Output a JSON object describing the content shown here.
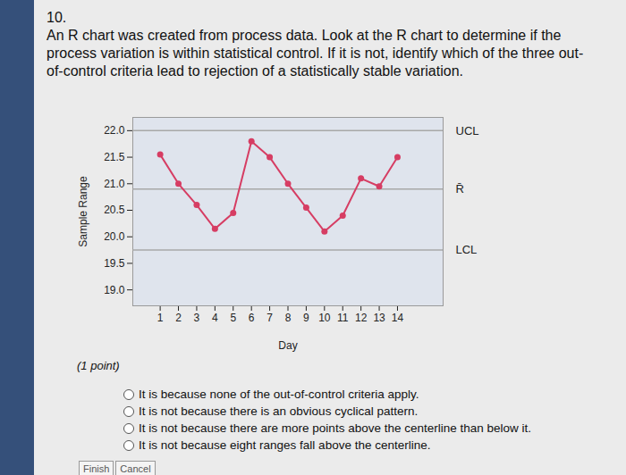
{
  "question": {
    "number": "10.",
    "text": "An R chart was created from process data. Look at the R chart to determine if the process variation is within statistical control. If it is not, identify which of the three out-of-control criteria lead to rejection of a statistically stable variation.",
    "points": "(1 point)",
    "options": [
      "It is because none of the out-of-control criteria apply.",
      "It is not because there is an obvious cyclical pattern.",
      "It is not because there are more points above the centerline than below it.",
      "It is not because eight ranges fall above the centerline."
    ],
    "buttons": [
      "Finish",
      "Cancel"
    ]
  },
  "chart_data": {
    "type": "line",
    "x_label": "Day",
    "y_label": "Sample Range",
    "x": [
      1,
      2,
      3,
      4,
      5,
      6,
      7,
      8,
      9,
      10,
      11,
      12,
      13,
      14
    ],
    "values": [
      21.55,
      21.0,
      20.6,
      20.15,
      20.45,
      21.8,
      21.5,
      21.0,
      20.55,
      20.1,
      20.4,
      21.1,
      20.95,
      21.5
    ],
    "color": "#d63d63",
    "marker": "circle",
    "control_limits": [
      {
        "label": "UCL",
        "value": 22.0
      },
      {
        "label": "R̄",
        "value": 20.9
      },
      {
        "label": "LCL",
        "value": 19.75
      }
    ],
    "xlim": [
      -0.5,
      16.5
    ],
    "xticks": [
      1,
      2,
      3,
      4,
      5,
      6,
      7,
      8,
      9,
      10,
      11,
      12,
      13,
      14
    ],
    "ylim": [
      18.7,
      22.25
    ],
    "yticks": [
      {
        "value": 19,
        "label": "19.0"
      },
      19.5,
      {
        "value": 20,
        "label": "20.0"
      },
      20.5,
      {
        "value": 21,
        "label": "21.0"
      },
      21.5,
      {
        "value": 22,
        "label": "22.0"
      }
    ]
  }
}
